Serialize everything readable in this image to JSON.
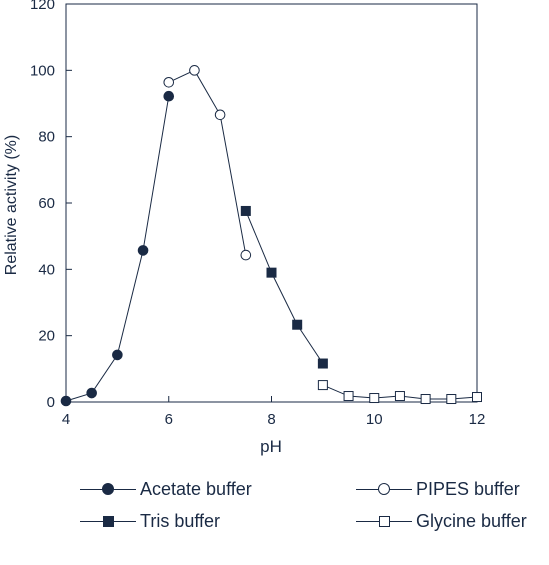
{
  "chart_data": {
    "type": "line",
    "title": "",
    "xlabel": "pH",
    "ylabel": "Relative activity (%)",
    "xlim": [
      4,
      12
    ],
    "ylim": [
      0,
      120
    ],
    "x_ticks": [
      4,
      6,
      8,
      10,
      12
    ],
    "y_ticks": [
      0,
      20,
      40,
      60,
      80,
      100,
      120
    ],
    "grid": false,
    "legend_position": "bottom",
    "series": [
      {
        "name": "Acetate buffer",
        "marker": "filled-circle",
        "x": [
          4.0,
          4.5,
          5.0,
          5.5,
          6.0
        ],
        "y": [
          0.3,
          2.7,
          14.2,
          45.7,
          92.2
        ]
      },
      {
        "name": "PIPES buffer",
        "marker": "open-circle",
        "x": [
          6.0,
          6.5,
          7.0,
          7.5
        ],
        "y": [
          96.4,
          100.0,
          86.6,
          44.3
        ]
      },
      {
        "name": "Tris buffer",
        "marker": "filled-square",
        "x": [
          7.5,
          8.0,
          8.5,
          9.0
        ],
        "y": [
          57.6,
          39.0,
          23.3,
          11.6
        ]
      },
      {
        "name": "Glycine buffer",
        "marker": "open-square",
        "x": [
          9.0,
          9.5,
          10.0,
          10.5,
          11.0,
          11.5,
          12.0
        ],
        "y": [
          5.1,
          1.8,
          1.2,
          1.8,
          0.9,
          0.9,
          1.5
        ]
      }
    ]
  },
  "legend": {
    "acetate": "Acetate buffer",
    "pipes": "PIPES buffer",
    "tris": "Tris buffer",
    "glycine": "Glycine buffer"
  },
  "colors": {
    "ink": "#1a2a44"
  }
}
